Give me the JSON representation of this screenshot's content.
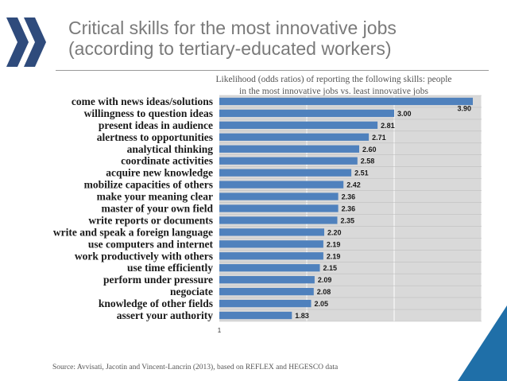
{
  "header": {
    "title_line1": "Critical skills for the most innovative jobs",
    "title_line2": "(according to tertiary-educated workers)"
  },
  "logo": {
    "name": "oecd-chevrons-logo",
    "color": "#2f4b7c"
  },
  "footer": {
    "source": "Source: Avvisati, Jacotin and Vincent-Lancrin (2013), based on REFLEX and HEGESCO data"
  },
  "colors": {
    "bar": "#4f81bd",
    "plot_bg": "#d9d9d9",
    "title": "#7a7a7a",
    "corner": "#1f6fa8"
  },
  "chart_data": {
    "type": "bar",
    "orientation": "horizontal",
    "title_line1": "Likelihood (odds ratios) of reporting the following skills: people",
    "title_line2": "in the most innovative jobs vs. least innovative  jobs",
    "categories": [
      "come with news ideas/solutions",
      "willingness to question ideas",
      "present ideas in audience",
      "alertness to opportunities",
      "analytical thinking",
      "coordinate activities",
      "acquire new knowledge",
      "mobilize capacities of others",
      "make your meaning clear",
      "master of your own field",
      "write reports or documents",
      "write and speak a foreign language",
      "use computers and internet",
      "work productively with others",
      "use time efficiently",
      "perform under pressure",
      "negociate",
      "knowledge of other fields",
      "assert your authority"
    ],
    "values": [
      3.9,
      3.0,
      2.81,
      2.71,
      2.6,
      2.58,
      2.51,
      2.42,
      2.36,
      2.36,
      2.35,
      2.2,
      2.19,
      2.19,
      2.15,
      2.09,
      2.08,
      2.05,
      1.83
    ],
    "value_labels": [
      "3.90",
      "3.00",
      "2.81",
      "2.71",
      "2.60",
      "2.58",
      "2.51",
      "2.42",
      "2.36",
      "2.36",
      "2.35",
      "2.20",
      "2.19",
      "2.19",
      "2.15",
      "2.09",
      "2.08",
      "2.05",
      "1.83"
    ],
    "x_tick_labels": [
      "1"
    ],
    "xlim": [
      1,
      4
    ],
    "grid": true,
    "legend": "none"
  }
}
